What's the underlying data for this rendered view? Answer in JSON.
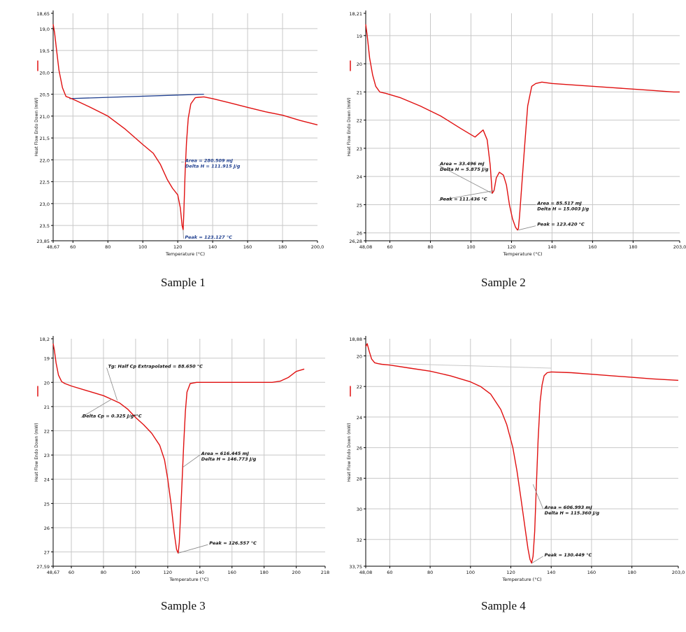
{
  "colors": {
    "curve": "#e01010",
    "baseline": "#1f3f8f",
    "grid": "#c8c8c8",
    "axis": "#000000",
    "label": "#111111",
    "leader": "#8a8a8a"
  },
  "chart_data": [
    {
      "type": "line",
      "caption": "Sample 1",
      "xlabel": "Temperature (°C)",
      "ylabel": "Heat Flow Endo Down (mW)",
      "xlim": [
        48.67,
        200
      ],
      "ylim": [
        18.65,
        23.85
      ],
      "x_ticks": [
        "48,67",
        "60",
        "80",
        "100",
        "120",
        "140",
        "160",
        "180",
        "200,0"
      ],
      "y_ticks": [
        "18,65",
        "19,0",
        "19,5",
        "20,0",
        "20,5",
        "21,0",
        "21,5",
        "22,0",
        "22,5",
        "23,0",
        "23,5",
        "23,85"
      ],
      "x": [
        48.67,
        49.5,
        50.5,
        52,
        54,
        56,
        58,
        62,
        70,
        80,
        90,
        100,
        106,
        110,
        114,
        117,
        120,
        121.5,
        122.5,
        123.1,
        123.5,
        124.2,
        125,
        126,
        127.5,
        130,
        132,
        135,
        140,
        150,
        160,
        170,
        180,
        190,
        200
      ],
      "y": [
        18.9,
        19.1,
        19.45,
        19.95,
        20.35,
        20.55,
        20.58,
        20.65,
        20.8,
        21.0,
        21.3,
        21.65,
        21.85,
        22.1,
        22.45,
        22.65,
        22.8,
        23.1,
        23.5,
        23.6,
        23.2,
        22.3,
        21.6,
        21.05,
        20.72,
        20.58,
        20.57,
        20.56,
        20.6,
        20.7,
        20.8,
        20.9,
        20.98,
        21.1,
        21.2
      ],
      "baseline": {
        "x": [
          58,
          135
        ],
        "y": [
          20.6,
          20.5
        ]
      },
      "annotations": [
        {
          "lines": [
            "Area = 280.509 mJ",
            "Delta H = 111.915 J/g"
          ],
          "x": 123.5,
          "y": 22.05,
          "target": [
            122,
            22.05
          ]
        },
        {
          "lines": [
            "Peak = 123.127 °C"
          ],
          "x": 123.3,
          "y": 23.8,
          "target": [
            123.1,
            23.6
          ]
        }
      ]
    },
    {
      "type": "line",
      "caption": "Sample 2",
      "xlabel": "Temperature (°C)",
      "ylabel": "Heat Flow Endo Down (mW)",
      "xlim": [
        48.08,
        203
      ],
      "ylim": [
        18.21,
        26.28
      ],
      "x_ticks": [
        "48,08",
        "60",
        "80",
        "100",
        "120",
        "140",
        "160",
        "180",
        "203,0"
      ],
      "y_ticks": [
        "18,21",
        "19",
        "20",
        "21",
        "22",
        "23",
        "24",
        "25",
        "26",
        "26,28"
      ],
      "x": [
        48.08,
        48.8,
        50,
        51.5,
        53,
        55,
        58,
        65,
        75,
        85,
        95,
        102,
        106,
        108,
        109.5,
        110.5,
        111.4,
        112.5,
        114,
        116,
        117.5,
        119,
        120.5,
        122,
        123,
        123.4,
        124,
        125,
        126.5,
        128,
        130,
        132,
        135,
        140,
        150,
        160,
        170,
        180,
        190,
        200,
        203
      ],
      "y": [
        18.6,
        19.0,
        19.8,
        20.4,
        20.8,
        21.0,
        21.05,
        21.2,
        21.5,
        21.85,
        22.3,
        22.6,
        22.35,
        22.7,
        23.6,
        24.6,
        24.5,
        24.05,
        23.85,
        23.95,
        24.3,
        25.0,
        25.5,
        25.8,
        25.9,
        25.85,
        25.4,
        24.4,
        22.9,
        21.5,
        20.8,
        20.7,
        20.65,
        20.7,
        20.75,
        20.8,
        20.85,
        20.9,
        20.95,
        21.0,
        21.0
      ],
      "baseline": null,
      "annotations": [
        {
          "lines": [
            "Area = 33.496 mJ",
            "Delta H = 5.875 J/g"
          ],
          "x": 84,
          "y": 23.6,
          "target": [
            110.5,
            24.6
          ]
        },
        {
          "lines": [
            "Peak = 111.436 °C"
          ],
          "x": 84,
          "y": 24.85,
          "target": [
            111.4,
            24.5
          ]
        },
        {
          "lines": [
            "Area = 85.517 mJ",
            "Delta H = 15.003 J/g"
          ],
          "x": 132,
          "y": 25.0,
          "target": [
            125.5,
            25.0
          ]
        },
        {
          "lines": [
            "Peak = 123.420 °C"
          ],
          "x": 132,
          "y": 25.75,
          "target": [
            123.4,
            25.9
          ]
        }
      ]
    },
    {
      "type": "line",
      "caption": "Sample 3",
      "xlabel": "Temperature (°C)",
      "ylabel": "Heat Flow Endo Down (mW)",
      "xlim": [
        48.67,
        218
      ],
      "ylim": [
        18.2,
        27.59
      ],
      "x_ticks": [
        "48,67",
        "60",
        "80",
        "100",
        "120",
        "140",
        "160",
        "180",
        "200",
        "218"
      ],
      "y_ticks": [
        "18,2",
        "19",
        "20",
        "21",
        "22",
        "23",
        "24",
        "25",
        "26",
        "27",
        "27,59"
      ],
      "x": [
        48.67,
        49.5,
        50.5,
        52,
        54,
        56,
        60,
        70,
        80,
        85,
        90,
        95,
        100,
        105,
        110,
        115,
        118,
        120,
        122,
        124,
        125.5,
        126.5,
        127.2,
        128,
        129,
        130,
        131,
        132,
        134,
        138,
        145,
        160,
        175,
        185,
        190,
        195,
        200,
        205
      ],
      "y": [
        18.4,
        18.7,
        19.2,
        19.7,
        19.97,
        20.05,
        20.15,
        20.35,
        20.55,
        20.7,
        20.85,
        21.1,
        21.45,
        21.75,
        22.1,
        22.6,
        23.2,
        24.0,
        25.0,
        26.2,
        26.9,
        27.05,
        26.6,
        25.5,
        24.0,
        22.5,
        21.2,
        20.4,
        20.05,
        20.0,
        20.0,
        20.0,
        20.0,
        20.0,
        19.95,
        19.8,
        19.55,
        19.45
      ],
      "baseline": null,
      "annotations": [
        {
          "lines": [
            "Tg: Half Cp Extrapolated = 88.650 °C"
          ],
          "x": 82,
          "y": 19.4,
          "target": [
            88.6,
            20.75
          ]
        },
        {
          "lines": [
            "Delta Cp = 0.325 J/g*°C"
          ],
          "x": 66,
          "y": 21.45,
          "target": [
            85,
            20.7
          ]
        },
        {
          "lines": [
            "Area = 616.445 mJ",
            "Delta H = 146.773 J/g"
          ],
          "x": 140,
          "y": 23.0,
          "target": [
            129.5,
            23.5
          ]
        },
        {
          "lines": [
            "Peak = 126.557 °C"
          ],
          "x": 145,
          "y": 26.7,
          "target": [
            126.5,
            27.05
          ]
        }
      ]
    },
    {
      "type": "line",
      "caption": "Sample 4",
      "xlabel": "Temperature (°C)",
      "ylabel": "Heat Flow Endo Down (mW)",
      "xlim": [
        48.08,
        203
      ],
      "ylim": [
        18.88,
        33.75
      ],
      "x_ticks": [
        "48,08",
        "60",
        "80",
        "100",
        "120",
        "140",
        "160",
        "180",
        "203,0"
      ],
      "y_ticks": [
        "18,88",
        "20",
        "22",
        "24",
        "26",
        "28",
        "30",
        "32",
        "33,75"
      ],
      "x": [
        48.08,
        48.8,
        49.8,
        51,
        52.5,
        54,
        56,
        60,
        70,
        80,
        90,
        100,
        105,
        110,
        115,
        118,
        121,
        123,
        125,
        127,
        128.5,
        129.5,
        130.3,
        131,
        131.8,
        132.5,
        133.5,
        134.5,
        135.5,
        136.5,
        138,
        140,
        150,
        160,
        170,
        180,
        190,
        203
      ],
      "y": [
        19.4,
        19.2,
        19.7,
        20.2,
        20.45,
        20.5,
        20.55,
        20.6,
        20.8,
        21.0,
        21.3,
        21.7,
        22.0,
        22.5,
        23.5,
        24.5,
        26.0,
        27.5,
        29.3,
        31.2,
        32.6,
        33.3,
        33.55,
        33.1,
        31.5,
        29.0,
        25.5,
        23.0,
        21.9,
        21.3,
        21.1,
        21.05,
        21.1,
        21.2,
        21.3,
        21.4,
        21.5,
        21.6
      ],
      "baseline": {
        "x": [
          60,
          140
        ],
        "y": [
          20.5,
          20.8
        ]
      },
      "annotations": [
        {
          "lines": [
            "Area = 606.993 mJ",
            "Delta H = 115.360 J/g"
          ],
          "x": 136,
          "y": 30.0,
          "target": [
            131,
            28.4
          ]
        },
        {
          "lines": [
            "Peak = 130.449 °C"
          ],
          "x": 136,
          "y": 33.1,
          "target": [
            130.4,
            33.55
          ]
        }
      ]
    }
  ]
}
